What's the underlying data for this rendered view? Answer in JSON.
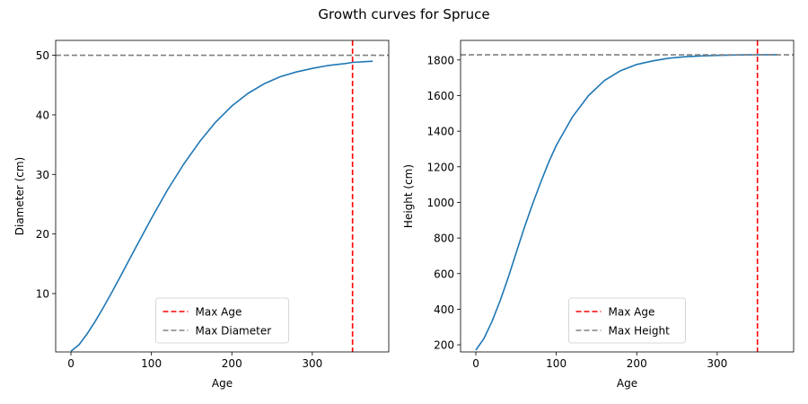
{
  "figure": {
    "suptitle": "Growth curves for Spruce"
  },
  "chart_data": [
    {
      "type": "line",
      "title": "",
      "xlabel": "Age",
      "ylabel": "Diameter (cm)",
      "xlim": [
        -19,
        395
      ],
      "ylim": [
        0.2,
        52.5
      ],
      "xticks": [
        0,
        100,
        200,
        300
      ],
      "yticks": [
        10,
        20,
        30,
        40,
        50
      ],
      "grid": false,
      "legend_position": "lower center",
      "series": [
        {
          "color": "#1f77b4",
          "x": [
            0,
            10,
            20,
            30,
            40,
            50,
            60,
            80,
            100,
            120,
            140,
            160,
            180,
            200,
            220,
            240,
            260,
            280,
            300,
            320,
            340,
            350,
            375
          ],
          "y": [
            0.3,
            1.4,
            3.2,
            5.3,
            7.6,
            10.0,
            12.5,
            17.6,
            22.6,
            27.4,
            31.7,
            35.5,
            38.8,
            41.5,
            43.6,
            45.2,
            46.4,
            47.2,
            47.8,
            48.3,
            48.6,
            48.8,
            49.0
          ]
        }
      ],
      "reference_lines": [
        {
          "label": "Max Age",
          "orientation": "vertical",
          "value": 350,
          "color": "#ff0000",
          "style": "dashed"
        },
        {
          "label": "Max Diameter",
          "orientation": "horizontal",
          "value": 50,
          "color": "#808080",
          "style": "dashed"
        }
      ]
    },
    {
      "type": "line",
      "title": "",
      "xlabel": "Age",
      "ylabel": "Height (cm)",
      "xlim": [
        -19,
        395
      ],
      "ylim": [
        160,
        1910
      ],
      "xticks": [
        0,
        100,
        200,
        300
      ],
      "yticks": [
        200,
        400,
        600,
        800,
        1000,
        1200,
        1400,
        1600,
        1800
      ],
      "grid": false,
      "legend_position": "lower center",
      "series": [
        {
          "color": "#1f77b4",
          "x": [
            0,
            10,
            20,
            30,
            40,
            50,
            60,
            70,
            80,
            90,
            100,
            120,
            140,
            160,
            180,
            200,
            220,
            240,
            260,
            280,
            300,
            320,
            340,
            350,
            375
          ],
          "y": [
            170,
            235,
            330,
            445,
            575,
            715,
            855,
            985,
            1105,
            1220,
            1320,
            1480,
            1600,
            1685,
            1740,
            1775,
            1795,
            1810,
            1818,
            1823,
            1826,
            1828,
            1829,
            1829,
            1830
          ]
        }
      ],
      "reference_lines": [
        {
          "label": "Max Age",
          "orientation": "vertical",
          "value": 350,
          "color": "#ff0000",
          "style": "dashed"
        },
        {
          "label": "Max Height",
          "orientation": "horizontal",
          "value": 1829,
          "color": "#808080",
          "style": "dashed"
        }
      ]
    }
  ]
}
